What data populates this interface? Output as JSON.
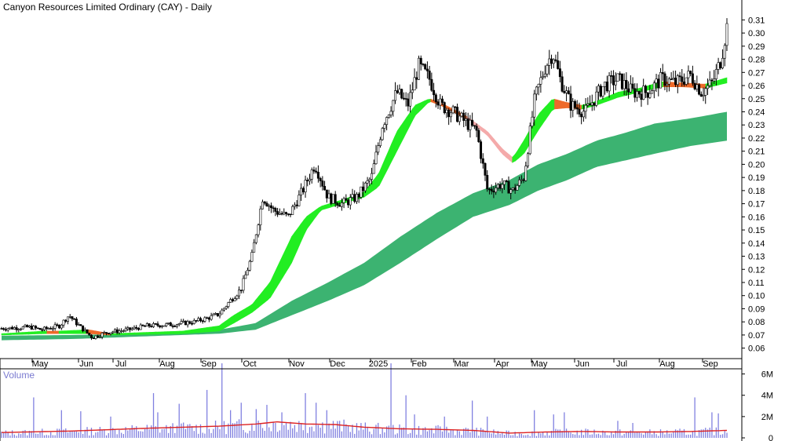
{
  "chart_data": [
    {
      "type": "line",
      "subtype": "candlestick-with-moving-average-ribbons",
      "title": "Canyon Resources Limited Ordinary (CAY) - Daily",
      "x_tick_labels": [
        "May",
        "Jun",
        "Jul",
        "Aug",
        "Sep",
        "Oct",
        "Nov",
        "Dec",
        "2025",
        "Feb",
        "Mar",
        "Apr",
        "May",
        "Jun",
        "Jul",
        "Aug",
        "Sep"
      ],
      "y_tick_labels": [
        "0.31",
        "0.30",
        "0.29",
        "0.28",
        "0.27",
        "0.26",
        "0.25",
        "0.24",
        "0.23",
        "0.22",
        "0.21",
        "0.20",
        "0.19",
        "0.18",
        "0.17",
        "0.16",
        "0.15",
        "0.14",
        "0.13",
        "0.12",
        "0.11",
        "0.10",
        "0.09",
        "0.08",
        "0.07",
        "0.06"
      ],
      "ylim": [
        0.055,
        0.315
      ],
      "y_axis_position": "right",
      "grid": false,
      "price_path": [
        [
          0.0,
          0.075
        ],
        [
          0.04,
          0.076
        ],
        [
          0.055,
          0.074
        ],
        [
          0.08,
          0.077
        ],
        [
          0.093,
          0.085
        ],
        [
          0.105,
          0.078
        ],
        [
          0.125,
          0.068
        ],
        [
          0.145,
          0.072
        ],
        [
          0.175,
          0.074
        ],
        [
          0.2,
          0.077
        ],
        [
          0.235,
          0.078
        ],
        [
          0.265,
          0.08
        ],
        [
          0.285,
          0.083
        ],
        [
          0.3,
          0.086
        ],
        [
          0.315,
          0.096
        ],
        [
          0.33,
          0.105
        ],
        [
          0.345,
          0.13
        ],
        [
          0.36,
          0.175
        ],
        [
          0.375,
          0.165
        ],
        [
          0.395,
          0.16
        ],
        [
          0.415,
          0.18
        ],
        [
          0.432,
          0.2
        ],
        [
          0.45,
          0.175
        ],
        [
          0.47,
          0.17
        ],
        [
          0.49,
          0.175
        ],
        [
          0.51,
          0.19
        ],
        [
          0.525,
          0.23
        ],
        [
          0.545,
          0.255
        ],
        [
          0.56,
          0.245
        ],
        [
          0.575,
          0.275
        ],
        [
          0.59,
          0.265
        ],
        [
          0.605,
          0.245
        ],
        [
          0.622,
          0.24
        ],
        [
          0.64,
          0.232
        ],
        [
          0.655,
          0.225
        ],
        [
          0.67,
          0.18
        ],
        [
          0.69,
          0.185
        ],
        [
          0.705,
          0.18
        ],
        [
          0.72,
          0.19
        ],
        [
          0.735,
          0.25
        ],
        [
          0.75,
          0.275
        ],
        [
          0.76,
          0.285
        ],
        [
          0.77,
          0.265
        ],
        [
          0.785,
          0.245
        ],
        [
          0.805,
          0.24
        ],
        [
          0.83,
          0.26
        ],
        [
          0.85,
          0.265
        ],
        [
          0.87,
          0.255
        ],
        [
          0.89,
          0.255
        ],
        [
          0.91,
          0.265
        ],
        [
          0.93,
          0.262
        ],
        [
          0.95,
          0.268
        ],
        [
          0.965,
          0.255
        ],
        [
          0.98,
          0.262
        ],
        [
          0.992,
          0.28
        ],
        [
          1.0,
          0.305
        ]
      ],
      "short_ribbon": {
        "series_segments": [
          {
            "color_state": "rising",
            "color": "#22ee22"
          },
          {
            "color_state": "falling",
            "color": "#ee6a2a"
          },
          {
            "color_state": "weak",
            "color": "#f4aaaa"
          }
        ],
        "top_path": [
          [
            0.0,
            0.071
          ],
          [
            0.06,
            0.073
          ],
          [
            0.08,
            0.073
          ],
          [
            0.12,
            0.074
          ],
          [
            0.15,
            0.071
          ],
          [
            0.25,
            0.073
          ],
          [
            0.3,
            0.077
          ],
          [
            0.32,
            0.085
          ],
          [
            0.345,
            0.093
          ],
          [
            0.37,
            0.11
          ],
          [
            0.4,
            0.145
          ],
          [
            0.42,
            0.16
          ],
          [
            0.44,
            0.168
          ],
          [
            0.47,
            0.173
          ],
          [
            0.5,
            0.179
          ],
          [
            0.52,
            0.193
          ],
          [
            0.545,
            0.225
          ],
          [
            0.57,
            0.245
          ],
          [
            0.59,
            0.25
          ],
          [
            0.605,
            0.247
          ],
          [
            0.64,
            0.237
          ],
          [
            0.67,
            0.225
          ],
          [
            0.69,
            0.212
          ],
          [
            0.705,
            0.205
          ],
          [
            0.72,
            0.218
          ],
          [
            0.74,
            0.238
          ],
          [
            0.76,
            0.25
          ],
          [
            0.78,
            0.247
          ],
          [
            0.8,
            0.245
          ],
          [
            0.82,
            0.248
          ],
          [
            0.85,
            0.255
          ],
          [
            0.88,
            0.258
          ],
          [
            0.91,
            0.263
          ],
          [
            0.94,
            0.262
          ],
          [
            0.97,
            0.261
          ],
          [
            1.0,
            0.266
          ]
        ],
        "bottom_path": [
          [
            0.0,
            0.07
          ],
          [
            0.06,
            0.071
          ],
          [
            0.08,
            0.071
          ],
          [
            0.12,
            0.071
          ],
          [
            0.15,
            0.07
          ],
          [
            0.25,
            0.071
          ],
          [
            0.3,
            0.073
          ],
          [
            0.32,
            0.079
          ],
          [
            0.345,
            0.087
          ],
          [
            0.37,
            0.098
          ],
          [
            0.4,
            0.125
          ],
          [
            0.42,
            0.15
          ],
          [
            0.44,
            0.165
          ],
          [
            0.47,
            0.17
          ],
          [
            0.5,
            0.175
          ],
          [
            0.52,
            0.183
          ],
          [
            0.545,
            0.21
          ],
          [
            0.57,
            0.237
          ],
          [
            0.59,
            0.248
          ],
          [
            0.605,
            0.245
          ],
          [
            0.64,
            0.235
          ],
          [
            0.67,
            0.222
          ],
          [
            0.69,
            0.208
          ],
          [
            0.705,
            0.201
          ],
          [
            0.72,
            0.208
          ],
          [
            0.74,
            0.226
          ],
          [
            0.76,
            0.242
          ],
          [
            0.78,
            0.243
          ],
          [
            0.8,
            0.242
          ],
          [
            0.82,
            0.245
          ],
          [
            0.85,
            0.251
          ],
          [
            0.88,
            0.255
          ],
          [
            0.91,
            0.259
          ],
          [
            0.94,
            0.259
          ],
          [
            0.97,
            0.258
          ],
          [
            1.0,
            0.262
          ]
        ]
      },
      "long_ribbon": {
        "color": "#3cb371",
        "top_path": [
          [
            0.0,
            0.0695
          ],
          [
            0.1,
            0.07
          ],
          [
            0.2,
            0.071
          ],
          [
            0.3,
            0.074
          ],
          [
            0.35,
            0.079
          ],
          [
            0.4,
            0.096
          ],
          [
            0.45,
            0.11
          ],
          [
            0.5,
            0.125
          ],
          [
            0.55,
            0.145
          ],
          [
            0.6,
            0.163
          ],
          [
            0.65,
            0.178
          ],
          [
            0.7,
            0.188
          ],
          [
            0.74,
            0.2
          ],
          [
            0.78,
            0.208
          ],
          [
            0.82,
            0.218
          ],
          [
            0.86,
            0.224
          ],
          [
            0.9,
            0.231
          ],
          [
            0.95,
            0.235
          ],
          [
            1.0,
            0.24
          ]
        ],
        "bottom_path": [
          [
            0.0,
            0.066
          ],
          [
            0.1,
            0.067
          ],
          [
            0.2,
            0.069
          ],
          [
            0.3,
            0.071
          ],
          [
            0.35,
            0.074
          ],
          [
            0.4,
            0.085
          ],
          [
            0.45,
            0.096
          ],
          [
            0.5,
            0.108
          ],
          [
            0.55,
            0.125
          ],
          [
            0.6,
            0.143
          ],
          [
            0.65,
            0.16
          ],
          [
            0.7,
            0.169
          ],
          [
            0.74,
            0.18
          ],
          [
            0.78,
            0.188
          ],
          [
            0.82,
            0.198
          ],
          [
            0.86,
            0.203
          ],
          [
            0.9,
            0.208
          ],
          [
            0.95,
            0.214
          ],
          [
            1.0,
            0.218
          ]
        ]
      }
    },
    {
      "type": "bar",
      "title": "Volume",
      "y_tick_labels": [
        "6M",
        "4M",
        "2M",
        "0"
      ],
      "ylim": [
        0,
        7000000
      ],
      "y_axis_position": "right",
      "bar_color": "#8080e0",
      "average_line_color": "#dd2222",
      "average_path": [
        [
          0.0,
          500000
        ],
        [
          0.1,
          650000
        ],
        [
          0.2,
          900000
        ],
        [
          0.3,
          1100000
        ],
        [
          0.35,
          1300000
        ],
        [
          0.38,
          1500000
        ],
        [
          0.42,
          1300000
        ],
        [
          0.46,
          1250000
        ],
        [
          0.5,
          1000000
        ],
        [
          0.55,
          850000
        ],
        [
          0.6,
          800000
        ],
        [
          0.65,
          700000
        ],
        [
          0.7,
          450000
        ],
        [
          0.75,
          550000
        ],
        [
          0.8,
          600000
        ],
        [
          0.85,
          550000
        ],
        [
          0.9,
          550000
        ],
        [
          0.95,
          600000
        ],
        [
          1.0,
          700000
        ]
      ],
      "spikes": [
        [
          0.045,
          3800000
        ],
        [
          0.083,
          2600000
        ],
        [
          0.11,
          2500000
        ],
        [
          0.15,
          2000000
        ],
        [
          0.208,
          4200000
        ],
        [
          0.214,
          2400000
        ],
        [
          0.245,
          3200000
        ],
        [
          0.282,
          4500000
        ],
        [
          0.303,
          7000000
        ],
        [
          0.315,
          2600000
        ],
        [
          0.33,
          3300000
        ],
        [
          0.35,
          2700000
        ],
        [
          0.365,
          3100000
        ],
        [
          0.386,
          2400000
        ],
        [
          0.42,
          4200000
        ],
        [
          0.435,
          3300000
        ],
        [
          0.448,
          2600000
        ],
        [
          0.538,
          7000000
        ],
        [
          0.558,
          4000000
        ],
        [
          0.57,
          2200000
        ],
        [
          0.61,
          2000000
        ],
        [
          0.65,
          3500000
        ],
        [
          0.67,
          2000000
        ],
        [
          0.735,
          2600000
        ],
        [
          0.76,
          2200000
        ],
        [
          0.775,
          2400000
        ],
        [
          0.85,
          1600000
        ],
        [
          0.87,
          1400000
        ],
        [
          0.957,
          3800000
        ],
        [
          0.978,
          2400000
        ],
        [
          0.988,
          2300000
        ]
      ]
    }
  ]
}
